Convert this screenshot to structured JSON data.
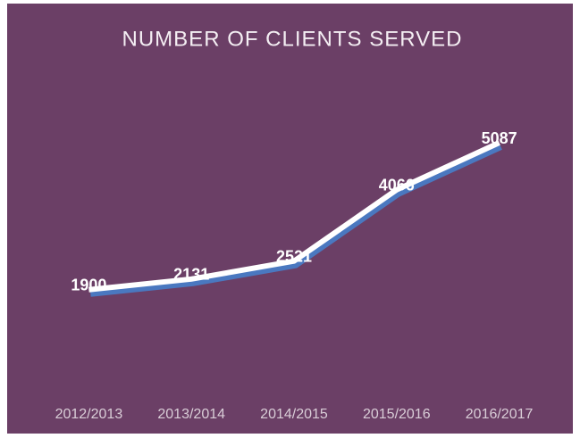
{
  "chart_data": {
    "type": "line",
    "title": "NUMBER OF CLIENTS SERVED",
    "categories": [
      "2012/2013",
      "2013/2014",
      "2014/2015",
      "2015/2016",
      "2016/2017"
    ],
    "values": [
      1900,
      2131,
      2521,
      4066,
      5087
    ],
    "color": "#ffffff",
    "shadow_color": "#4a78c0",
    "background": "#6b3f66"
  }
}
